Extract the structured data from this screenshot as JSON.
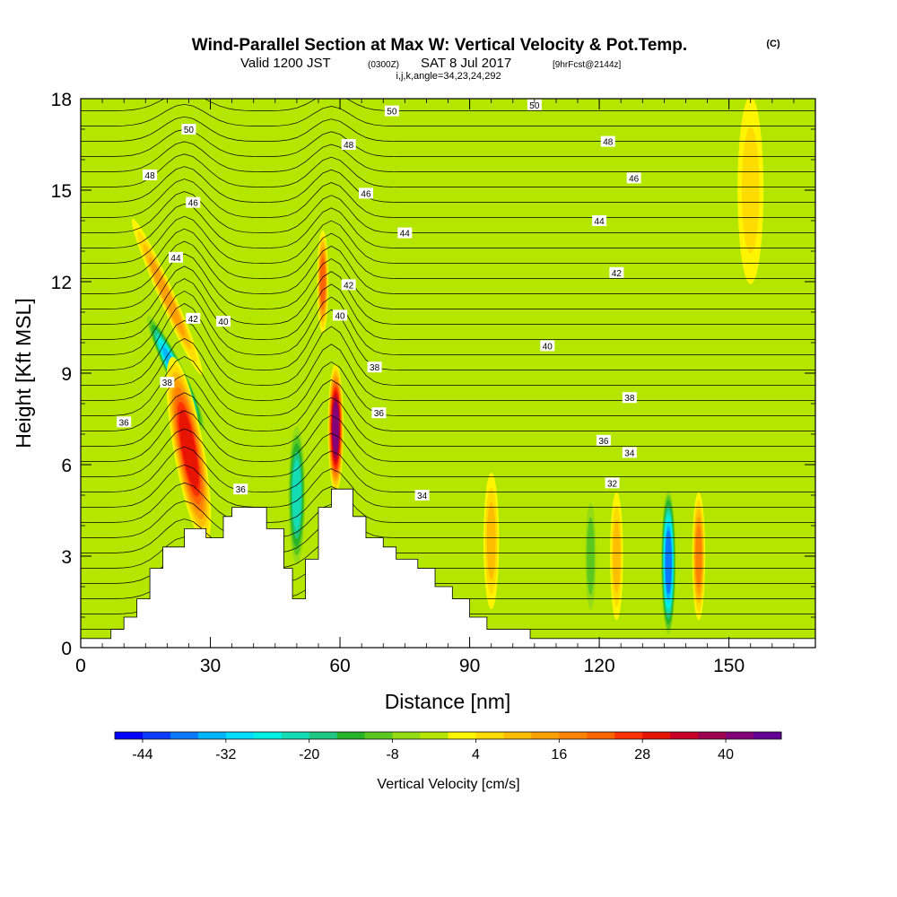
{
  "header": {
    "title": "Wind-Parallel Section at Max W: Vertical Velocity & Pot.Temp.",
    "copyright": "(C)",
    "valid_prefix": "Valid 1200 JST",
    "valid_utc": "(0300Z)",
    "valid_date": "SAT 8 Jul 2017",
    "forecast": "[9hrFcst@2144z]",
    "indices": "i,j,k,angle=34,23,24,292"
  },
  "chart_data": {
    "type": "heatmap",
    "xlabel": "Distance [nm]",
    "ylabel": "Height [Kft MSL]",
    "xlim": [
      0,
      170
    ],
    "ylim": [
      0,
      18
    ],
    "xticks": [
      "0",
      "30",
      "60",
      "90",
      "120",
      "150"
    ],
    "yticks": [
      "0",
      "3",
      "6",
      "9",
      "12",
      "15",
      "18"
    ],
    "colorbar": {
      "label": "Vertical Velocity [cm/s]",
      "tick_labels": [
        "-44",
        "-32",
        "-20",
        "-8",
        "4",
        "16",
        "28",
        "40"
      ],
      "levels_min": -48,
      "levels_max": 48,
      "level_step": 4,
      "colors": [
        "#0000ff",
        "#0a3cff",
        "#0a78ff",
        "#00b4ff",
        "#00dcff",
        "#00f0e6",
        "#14dcb4",
        "#1ec882",
        "#28b428",
        "#5ac81e",
        "#96dc14",
        "#b4e600",
        "#fff500",
        "#ffdc00",
        "#ffbe00",
        "#ffa000",
        "#ff8200",
        "#ff6400",
        "#ff3200",
        "#e61400",
        "#c80028",
        "#a00050",
        "#820078",
        "#640096"
      ]
    },
    "terrain": [
      {
        "x": 0,
        "h": 0.3
      },
      {
        "x": 7,
        "h": 0.6
      },
      {
        "x": 10,
        "h": 1.0
      },
      {
        "x": 13,
        "h": 1.6
      },
      {
        "x": 16,
        "h": 2.6
      },
      {
        "x": 19,
        "h": 3.3
      },
      {
        "x": 24,
        "h": 3.9
      },
      {
        "x": 29,
        "h": 3.6
      },
      {
        "x": 33,
        "h": 4.3
      },
      {
        "x": 35,
        "h": 4.6
      },
      {
        "x": 40,
        "h": 4.6
      },
      {
        "x": 43,
        "h": 3.9
      },
      {
        "x": 47,
        "h": 2.6
      },
      {
        "x": 49,
        "h": 1.6
      },
      {
        "x": 52,
        "h": 2.9
      },
      {
        "x": 55,
        "h": 4.6
      },
      {
        "x": 58,
        "h": 5.2
      },
      {
        "x": 63,
        "h": 4.3
      },
      {
        "x": 66,
        "h": 3.6
      },
      {
        "x": 70,
        "h": 3.3
      },
      {
        "x": 73,
        "h": 2.9
      },
      {
        "x": 78,
        "h": 2.6
      },
      {
        "x": 82,
        "h": 2.0
      },
      {
        "x": 86,
        "h": 1.6
      },
      {
        "x": 90,
        "h": 1.0
      },
      {
        "x": 94,
        "h": 0.6
      },
      {
        "x": 104,
        "h": 0.3
      },
      {
        "x": 170,
        "h": 0.3
      }
    ],
    "w_features": [
      {
        "x": 22,
        "y": 9.0,
        "rx": 2.2,
        "ry": 1.6,
        "w": -36,
        "tilt": 0.55
      },
      {
        "x": 25,
        "y": 6.5,
        "rx": 3.5,
        "ry": 2.2,
        "w": 30,
        "tilt": 0.2
      },
      {
        "x": 20,
        "y": 11.5,
        "rx": 1.8,
        "ry": 2.0,
        "w": 16,
        "tilt": 0.5
      },
      {
        "x": 50,
        "y": 5.0,
        "rx": 2.2,
        "ry": 1.8,
        "w": -24,
        "tilt": 0
      },
      {
        "x": 59,
        "y": 7.2,
        "rx": 1.8,
        "ry": 1.5,
        "w": 44,
        "tilt": 0
      },
      {
        "x": 56,
        "y": 12.0,
        "rx": 1.3,
        "ry": 1.2,
        "w": 24,
        "tilt": 0
      },
      {
        "x": 136,
        "y": 2.8,
        "rx": 1.8,
        "ry": 1.8,
        "w": -40,
        "tilt": 0
      },
      {
        "x": 143,
        "y": 3.0,
        "rx": 1.5,
        "ry": 1.5,
        "w": 18,
        "tilt": 0
      },
      {
        "x": 124,
        "y": 3.0,
        "rx": 1.5,
        "ry": 1.5,
        "w": 10,
        "tilt": 0
      },
      {
        "x": 118,
        "y": 3.0,
        "rx": 1.6,
        "ry": 1.6,
        "w": -10,
        "tilt": 0
      },
      {
        "x": 95,
        "y": 3.5,
        "rx": 1.8,
        "ry": 1.6,
        "w": 12,
        "tilt": 0
      },
      {
        "x": 155,
        "y": 15.0,
        "rx": 3.0,
        "ry": 2.2,
        "w": 6,
        "tilt": 0
      }
    ],
    "theta_labels": [
      {
        "text": "50",
        "x": 25,
        "y": 17.0
      },
      {
        "text": "50",
        "x": 72,
        "y": 17.6
      },
      {
        "text": "50",
        "x": 105,
        "y": 17.8
      },
      {
        "text": "48",
        "x": 16,
        "y": 15.5
      },
      {
        "text": "48",
        "x": 62,
        "y": 16.5
      },
      {
        "text": "48",
        "x": 122,
        "y": 16.6
      },
      {
        "text": "46",
        "x": 26,
        "y": 14.6
      },
      {
        "text": "46",
        "x": 66,
        "y": 14.9
      },
      {
        "text": "46",
        "x": 128,
        "y": 15.4
      },
      {
        "text": "44",
        "x": 22,
        "y": 12.8
      },
      {
        "text": "44",
        "x": 75,
        "y": 13.6
      },
      {
        "text": "44",
        "x": 120,
        "y": 14.0
      },
      {
        "text": "42",
        "x": 26,
        "y": 10.8
      },
      {
        "text": "42",
        "x": 62,
        "y": 11.9
      },
      {
        "text": "42",
        "x": 124,
        "y": 12.3
      },
      {
        "text": "40",
        "x": 33,
        "y": 10.7
      },
      {
        "text": "40",
        "x": 60,
        "y": 10.9
      },
      {
        "text": "40",
        "x": 108,
        "y": 9.9
      },
      {
        "text": "38",
        "x": 20,
        "y": 8.7
      },
      {
        "text": "38",
        "x": 68,
        "y": 9.2
      },
      {
        "text": "38",
        "x": 127,
        "y": 8.2
      },
      {
        "text": "36",
        "x": 10,
        "y": 7.4
      },
      {
        "text": "36",
        "x": 37,
        "y": 5.2
      },
      {
        "text": "36",
        "x": 69,
        "y": 7.7
      },
      {
        "text": "36",
        "x": 121,
        "y": 6.8
      },
      {
        "text": "34",
        "x": 79,
        "y": 5.0
      },
      {
        "text": "34",
        "x": 127,
        "y": 6.4
      },
      {
        "text": "32",
        "x": 123,
        "y": 5.4
      }
    ]
  }
}
